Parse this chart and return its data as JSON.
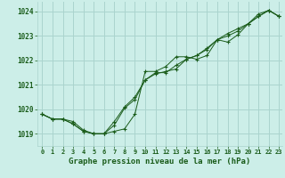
{
  "title": "Graphe pression niveau de la mer (hPa)",
  "bg_color": "#cceee8",
  "grid_color": "#aad4ce",
  "line_color": "#1a5c1a",
  "marker_color": "#1a5c1a",
  "xlim": [
    -0.5,
    23.3
  ],
  "ylim": [
    1018.5,
    1024.4
  ],
  "yticks": [
    1019,
    1020,
    1021,
    1022,
    1023,
    1024
  ],
  "xticks": [
    0,
    1,
    2,
    3,
    4,
    5,
    6,
    7,
    8,
    9,
    10,
    11,
    12,
    13,
    14,
    15,
    16,
    17,
    18,
    19,
    20,
    21,
    22,
    23
  ],
  "series": [
    [
      1019.8,
      1019.6,
      1019.6,
      1019.5,
      1019.15,
      1019.0,
      1019.0,
      1019.1,
      1019.2,
      1019.8,
      1021.55,
      1021.55,
      1021.75,
      1022.15,
      1022.15,
      1022.05,
      1022.2,
      1022.85,
      1022.75,
      1023.05,
      1023.5,
      1023.9,
      1024.05,
      1023.8
    ],
    [
      1019.8,
      1019.6,
      1019.6,
      1019.4,
      1019.1,
      1019.0,
      1019.0,
      1019.35,
      1020.05,
      1020.4,
      1021.2,
      1021.45,
      1021.55,
      1021.65,
      1022.05,
      1022.2,
      1022.5,
      1022.85,
      1023.1,
      1023.3,
      1023.5,
      1023.8,
      1024.05,
      1023.8
    ],
    [
      1019.8,
      1019.6,
      1019.6,
      1019.4,
      1019.1,
      1019.0,
      1019.0,
      1019.5,
      1020.1,
      1020.5,
      1021.2,
      1021.5,
      1021.5,
      1021.8,
      1022.05,
      1022.2,
      1022.45,
      1022.85,
      1023.0,
      1023.2,
      1023.5,
      1023.8,
      1024.05,
      1023.8
    ]
  ]
}
